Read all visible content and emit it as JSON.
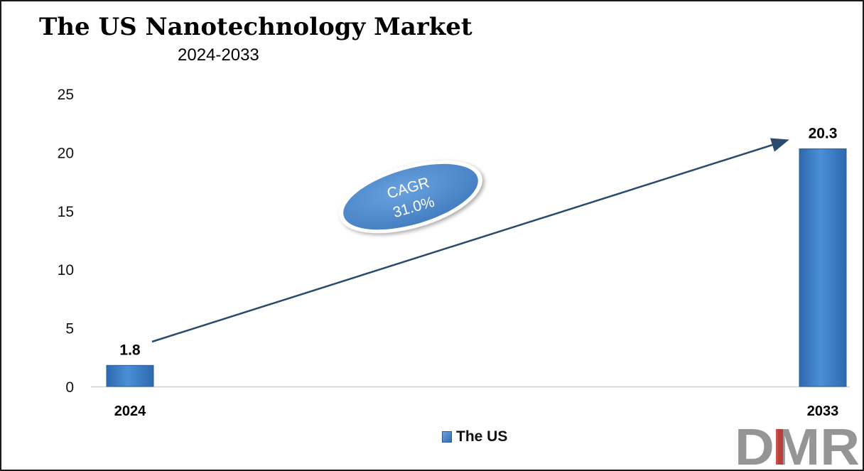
{
  "title": "The US Nanotechnology Market",
  "subtitle": "2024-2033",
  "colors": {
    "bar": "#3a7cc6",
    "bar_edge": "#2a5d99",
    "arrow": "#2a4a6e",
    "badge": "#4a86cb",
    "logo_gray": "#888888",
    "logo_red": "#c0302a"
  },
  "badge": {
    "line1": "CAGR",
    "line2": "31.0%"
  },
  "logo_text": "DMR",
  "chart_data": {
    "type": "bar",
    "categories": [
      "2024",
      "2033"
    ],
    "series": [
      {
        "name": "The US",
        "values": [
          1.8,
          20.3
        ]
      }
    ],
    "data_labels": [
      "1.8",
      "20.3"
    ],
    "yticks": [
      "0",
      "5",
      "10",
      "15",
      "20",
      "25"
    ],
    "ylim": [
      0,
      25
    ],
    "grid": false,
    "legend": "bottom-center",
    "xlabel": "",
    "ylabel": ""
  }
}
